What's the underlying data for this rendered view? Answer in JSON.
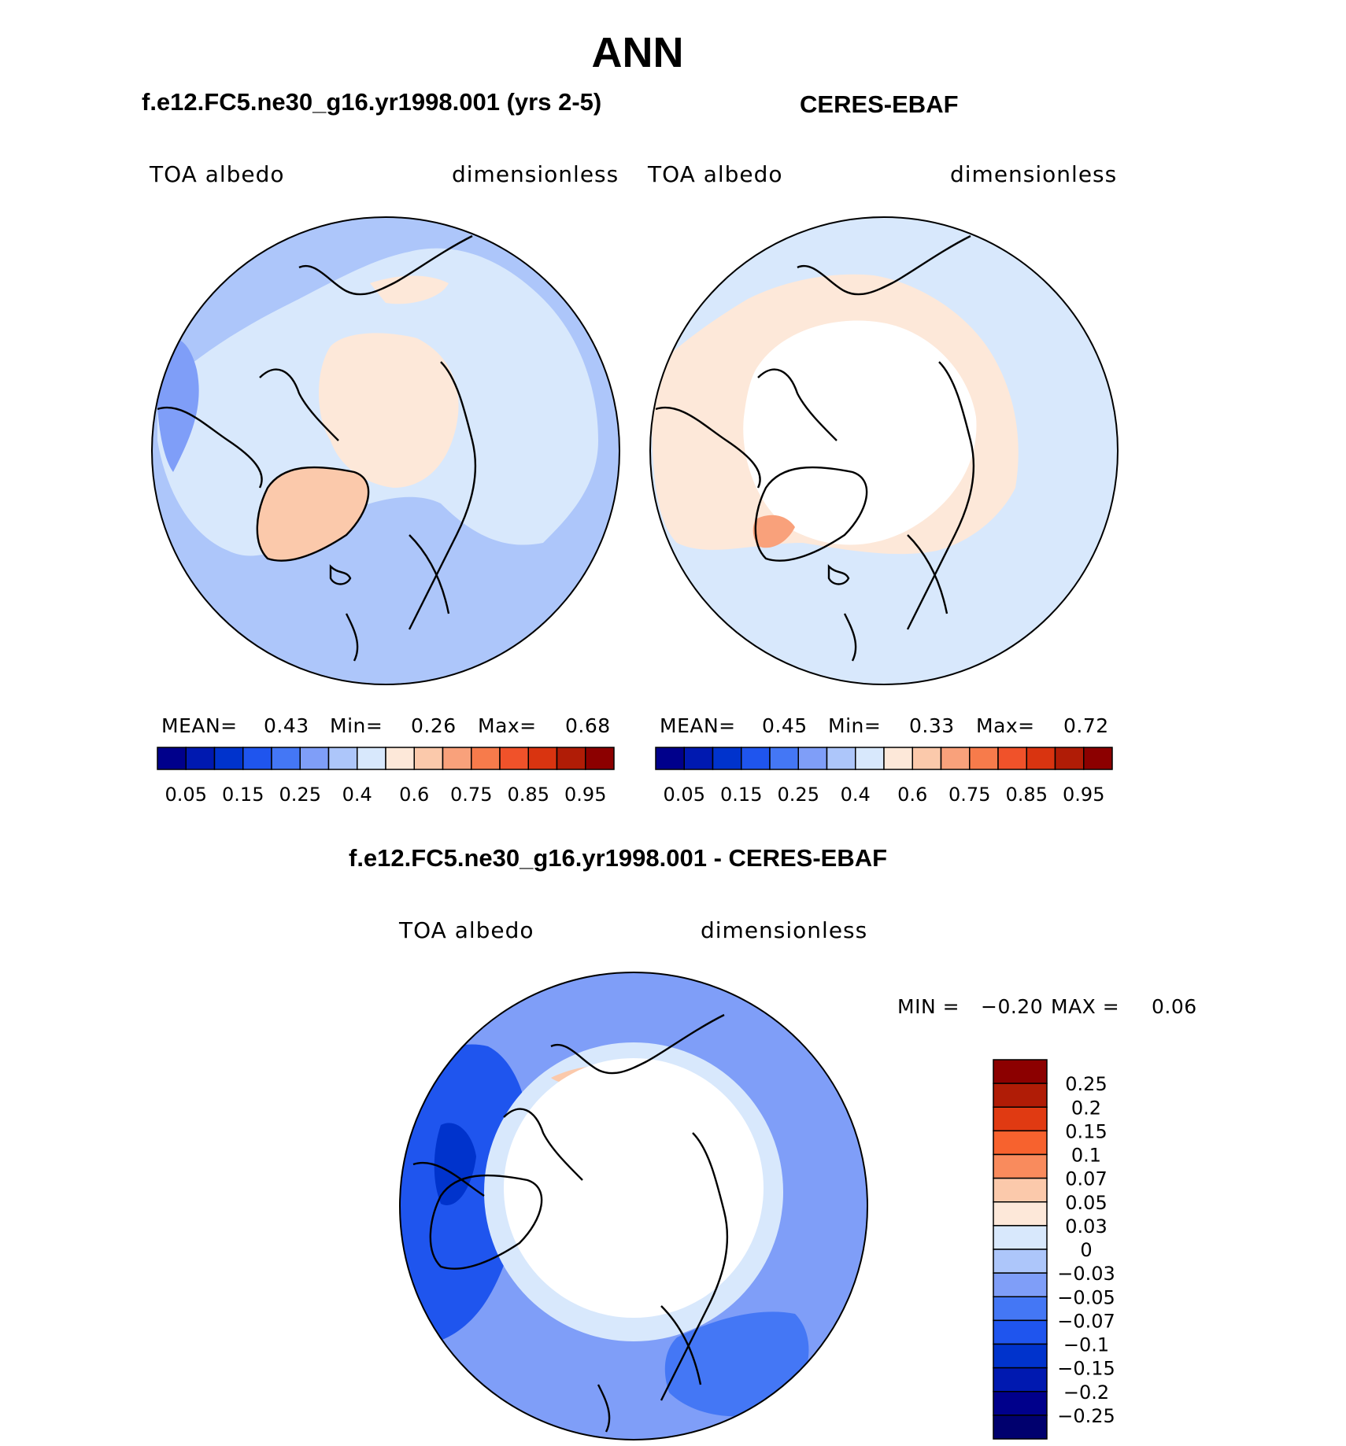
{
  "title": "ANN",
  "colors": {
    "seq_scale": [
      "#00008b",
      "#0019b0",
      "#0033cc",
      "#1f55ee",
      "#4477f5",
      "#7f9ef8",
      "#adc6fa",
      "#d8e8fc",
      "#fde8d9",
      "#fbc9ab",
      "#f9a17b",
      "#f77b4b",
      "#f0522a",
      "#d93410",
      "#b01c06",
      "#8c0000"
    ],
    "div_scale": [
      "#8c0000",
      "#b01c06",
      "#e03a12",
      "#f7622e",
      "#f98b5d",
      "#fbc9ab",
      "#fde8d9",
      "#d8e8fc",
      "#adc6fa",
      "#7f9ef8",
      "#4477f5",
      "#1f55ee",
      "#0033cc",
      "#0019b0",
      "#00008b"
    ],
    "coast": "#000000",
    "land_outline": "#000000"
  },
  "panels": [
    {
      "header": "f.e12.FC5.ne30_g16.yr1998.001 (yrs 2-5)",
      "left_label": "TOA albedo",
      "right_label": "dimensionless",
      "stats": {
        "mean_label": "MEAN=",
        "mean": "0.43",
        "min_label": "Min=",
        "min": "0.26",
        "max_label": "Max=",
        "max": "0.68"
      },
      "ticks": [
        "0.05",
        "0.15",
        "0.25",
        "0.4",
        "0.6",
        "0.75",
        "0.85",
        "0.95"
      ]
    },
    {
      "header": "CERES-EBAF",
      "left_label": "TOA albedo",
      "right_label": "dimensionless",
      "stats": {
        "mean_label": "MEAN=",
        "mean": "0.45",
        "min_label": "Min=",
        "min": "0.33",
        "max_label": "Max=",
        "max": "0.72"
      },
      "ticks": [
        "0.05",
        "0.15",
        "0.25",
        "0.4",
        "0.6",
        "0.75",
        "0.85",
        "0.95"
      ]
    }
  ],
  "diff": {
    "header": "f.e12.FC5.ne30_g16.yr1998.001 - CERES-EBAF",
    "left_label": "TOA albedo",
    "right_label": "dimensionless",
    "min_label": "MIN =",
    "min": "−0.20",
    "max_label": "MAX =",
    "max": "0.06",
    "ticks": [
      "0.25",
      "0.2",
      "0.15",
      "0.1",
      "0.07",
      "0.05",
      "0.03",
      "0",
      "−0.03",
      "−0.05",
      "−0.07",
      "−0.1",
      "−0.15",
      "−0.2",
      "−0.25"
    ]
  }
}
